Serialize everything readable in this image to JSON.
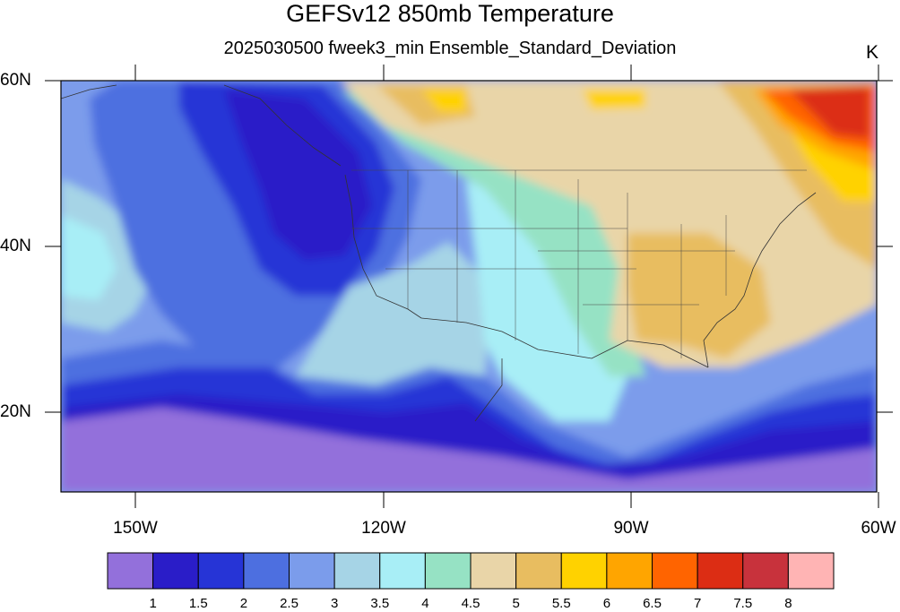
{
  "title": "GEFSv12 850mb Temperature",
  "subtitle": "2025030500 fweek3_min Ensemble_Standard_Deviation",
  "units": "K",
  "lat_ticks": [
    {
      "value": 60,
      "label": "60N"
    },
    {
      "value": 40,
      "label": "40N"
    },
    {
      "value": 20,
      "label": "20N"
    }
  ],
  "lon_ticks": [
    {
      "value": -150,
      "label": "150W"
    },
    {
      "value": -120,
      "label": "120W"
    },
    {
      "value": -90,
      "label": "90W"
    },
    {
      "value": -60,
      "label": "60W"
    }
  ],
  "colorbar": {
    "labels": [
      "1",
      "1.5",
      "2",
      "2.5",
      "3",
      "3.5",
      "4",
      "4.5",
      "5",
      "5.5",
      "6",
      "6.5",
      "7",
      "7.5",
      "8"
    ],
    "colors": [
      "#9370DB",
      "#2A1DC8",
      "#2634D6",
      "#4D6FE0",
      "#7B9CEB",
      "#A6D4E6",
      "#A8EEF6",
      "#96E2C4",
      "#E9D5A8",
      "#E8BD60",
      "#FFD200",
      "#FFA500",
      "#FF6400",
      "#DC2D14",
      "#C8323C",
      "#FFB4B4"
    ]
  },
  "chart_data": {
    "type": "heatmap",
    "title": "GEFSv12 850mb Temperature",
    "subtitle": "2025030500 fweek3_min Ensemble_Standard_Deviation",
    "units": "K",
    "lon_range": [
      -160,
      -60
    ],
    "lat_range": [
      10,
      60
    ],
    "levels": [
      1,
      1.5,
      2,
      2.5,
      3,
      3.5,
      4,
      4.5,
      5,
      5.5,
      6,
      6.5,
      7,
      7.5,
      8
    ]
  }
}
